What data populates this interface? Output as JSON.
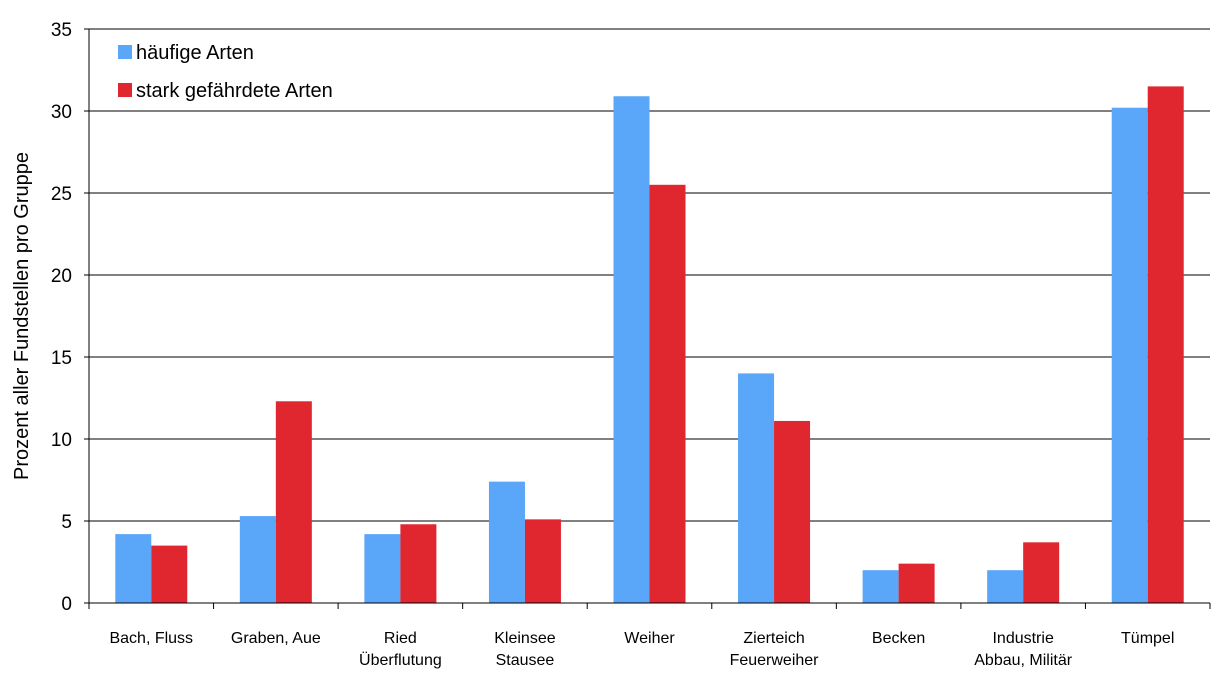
{
  "chart_data": {
    "type": "bar",
    "title": "",
    "xlabel": "",
    "ylabel": "Prozent aller Fundstellen pro Gruppe",
    "ylim": [
      0,
      35
    ],
    "yticks": [
      0,
      5,
      10,
      15,
      20,
      25,
      30,
      35
    ],
    "grid": true,
    "legend_position": "top-left",
    "categories": [
      [
        "Bach, Fluss"
      ],
      [
        "Graben, Aue"
      ],
      [
        "Ried",
        "Überflutung"
      ],
      [
        "Kleinsee",
        "Stausee"
      ],
      [
        "Weiher"
      ],
      [
        "Zierteich",
        "Feuerweiher"
      ],
      [
        "Becken"
      ],
      [
        "Industrie",
        "Abbau, Militär"
      ],
      [
        "Tümpel"
      ]
    ],
    "series": [
      {
        "name": "häufige Arten",
        "color": "#5aa6f8",
        "values": [
          4.2,
          5.3,
          4.2,
          7.4,
          30.9,
          14.0,
          2.0,
          2.0,
          30.2
        ]
      },
      {
        "name": "stark gefährdete Arten",
        "color": "#e0262f",
        "values": [
          3.5,
          12.3,
          4.8,
          5.1,
          25.5,
          11.1,
          2.4,
          3.7,
          31.5
        ]
      }
    ]
  }
}
